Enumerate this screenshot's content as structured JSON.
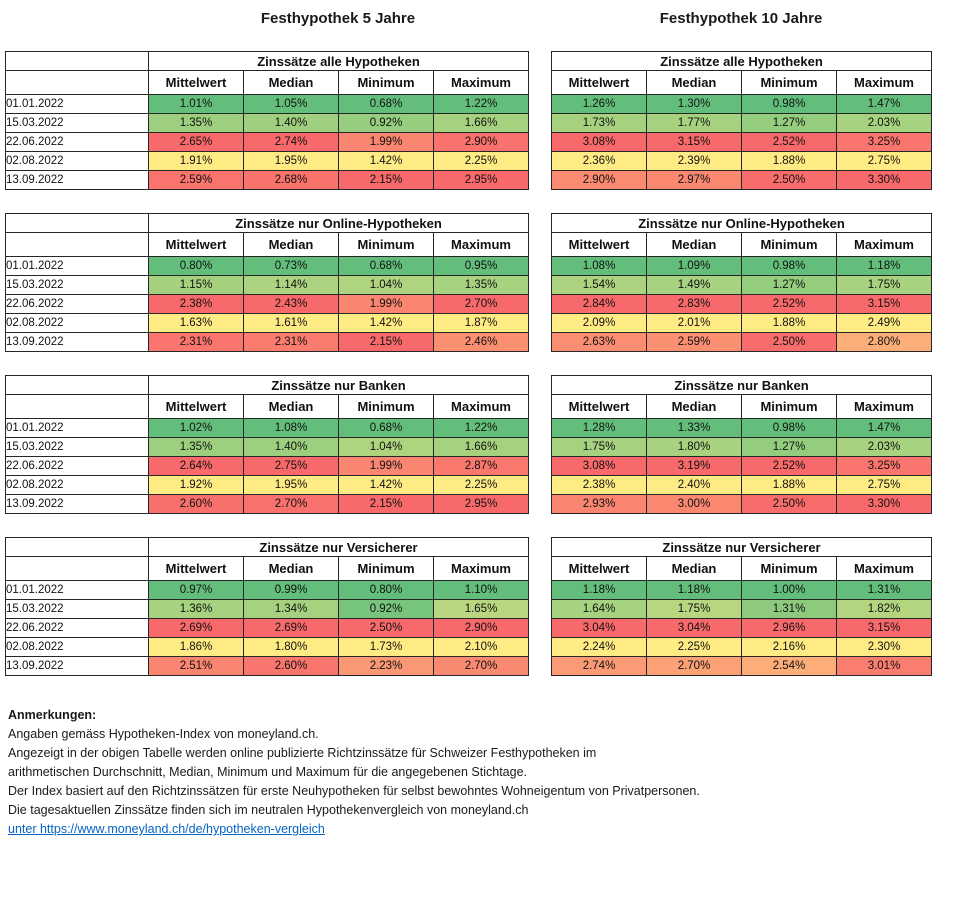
{
  "page": {
    "left_title": "Festhypothek 5 Jahre",
    "right_title": "Festhypothek 10 Jahre"
  },
  "value_headers": [
    "Mittelwert",
    "Median",
    "Minimum",
    "Maximum"
  ],
  "dates": [
    "01.01.2022",
    "15.03.2022",
    "22.06.2022",
    "02.08.2022",
    "13.09.2022"
  ],
  "palette": {
    "scale_min_green": "#63BE7B",
    "scale_mid_yellow": "#FFEB84",
    "scale_max_red": "#F8696B",
    "link_blue": "#0563C1",
    "border_black": "#262626"
  },
  "groups": [
    {
      "title": "Zinssätze alle Hypotheken",
      "left": [
        [
          "1.01%",
          "1.05%",
          "0.68%",
          "1.22%"
        ],
        [
          "1.35%",
          "1.40%",
          "0.92%",
          "1.66%"
        ],
        [
          "2.65%",
          "2.74%",
          "1.99%",
          "2.90%"
        ],
        [
          "1.91%",
          "1.95%",
          "1.42%",
          "2.25%"
        ],
        [
          "2.59%",
          "2.68%",
          "2.15%",
          "2.95%"
        ]
      ],
      "right": [
        [
          "1.26%",
          "1.30%",
          "0.98%",
          "1.47%"
        ],
        [
          "1.73%",
          "1.77%",
          "1.27%",
          "2.03%"
        ],
        [
          "3.08%",
          "3.15%",
          "2.52%",
          "3.25%"
        ],
        [
          "2.36%",
          "2.39%",
          "1.88%",
          "2.75%"
        ],
        [
          "2.90%",
          "2.97%",
          "2.50%",
          "3.30%"
        ]
      ]
    },
    {
      "title": "Zinssätze nur Online-Hypotheken",
      "left": [
        [
          "0.80%",
          "0.73%",
          "0.68%",
          "0.95%"
        ],
        [
          "1.15%",
          "1.14%",
          "1.04%",
          "1.35%"
        ],
        [
          "2.38%",
          "2.43%",
          "1.99%",
          "2.70%"
        ],
        [
          "1.63%",
          "1.61%",
          "1.42%",
          "1.87%"
        ],
        [
          "2.31%",
          "2.31%",
          "2.15%",
          "2.46%"
        ]
      ],
      "right": [
        [
          "1.08%",
          "1.09%",
          "0.98%",
          "1.18%"
        ],
        [
          "1.54%",
          "1.49%",
          "1.27%",
          "1.75%"
        ],
        [
          "2.84%",
          "2.83%",
          "2.52%",
          "3.15%"
        ],
        [
          "2.09%",
          "2.01%",
          "1.88%",
          "2.49%"
        ],
        [
          "2.63%",
          "2.59%",
          "2.50%",
          "2.80%"
        ]
      ]
    },
    {
      "title": "Zinssätze nur Banken",
      "left": [
        [
          "1.02%",
          "1.08%",
          "0.68%",
          "1.22%"
        ],
        [
          "1.35%",
          "1.40%",
          "1.04%",
          "1.66%"
        ],
        [
          "2.64%",
          "2.75%",
          "1.99%",
          "2.87%"
        ],
        [
          "1.92%",
          "1.95%",
          "1.42%",
          "2.25%"
        ],
        [
          "2.60%",
          "2.70%",
          "2.15%",
          "2.95%"
        ]
      ],
      "right": [
        [
          "1.28%",
          "1.33%",
          "0.98%",
          "1.47%"
        ],
        [
          "1.75%",
          "1.80%",
          "1.27%",
          "2.03%"
        ],
        [
          "3.08%",
          "3.19%",
          "2.52%",
          "3.25%"
        ],
        [
          "2.38%",
          "2.40%",
          "1.88%",
          "2.75%"
        ],
        [
          "2.93%",
          "3.00%",
          "2.50%",
          "3.30%"
        ]
      ]
    },
    {
      "title": "Zinssätze nur Versicherer",
      "left": [
        [
          "0.97%",
          "0.99%",
          "0.80%",
          "1.10%"
        ],
        [
          "1.36%",
          "1.34%",
          "0.92%",
          "1.65%"
        ],
        [
          "2.69%",
          "2.69%",
          "2.50%",
          "2.90%"
        ],
        [
          "1.86%",
          "1.80%",
          "1.73%",
          "2.10%"
        ],
        [
          "2.51%",
          "2.60%",
          "2.23%",
          "2.70%"
        ]
      ],
      "right": [
        [
          "1.18%",
          "1.18%",
          "1.00%",
          "1.31%"
        ],
        [
          "1.64%",
          "1.75%",
          "1.31%",
          "1.82%"
        ],
        [
          "3.04%",
          "3.04%",
          "2.96%",
          "3.15%"
        ],
        [
          "2.24%",
          "2.25%",
          "2.16%",
          "2.30%"
        ],
        [
          "2.74%",
          "2.70%",
          "2.54%",
          "3.01%"
        ]
      ]
    }
  ],
  "notes": {
    "heading": "Anmerkungen:",
    "lines": [
      "Angaben gemäss Hypotheken-Index von moneyland.ch.",
      "Angezeigt in der obigen Tabelle werden online publizierte Richtzinssätze für Schweizer Festhypotheken im",
      "arithmetischen Durchschnitt, Median, Minimum und Maximum für die angegebenen Stichtage.",
      "Der Index basiert auf den Richtzinssätzen für erste Neuhypotheken für selbst bewohntes Wohneigentum von Privatpersonen.",
      "Die tagesaktuellen Zinssätze finden sich im neutralen Hypothekenvergleich von moneyland.ch"
    ],
    "link_text": "unter https://www.moneyland.ch/de/hypotheken-vergleich",
    "link_href": "https://www.moneyland.ch/de/hypotheken-vergleich"
  }
}
